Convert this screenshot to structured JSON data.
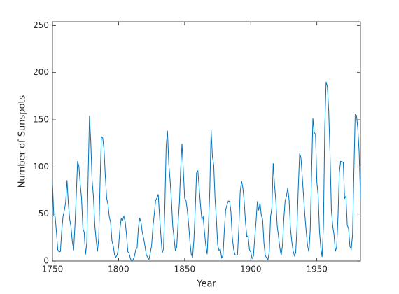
{
  "chart_data": {
    "type": "line",
    "xlabel": "Year",
    "ylabel": "Number of Sunspots",
    "xlim": [
      1750,
      1983
    ],
    "ylim": [
      0,
      254
    ],
    "xticks": [
      1750,
      1800,
      1850,
      1900,
      1950
    ],
    "yticks": [
      0,
      50,
      100,
      150,
      200,
      250
    ],
    "grid": false,
    "series": [
      {
        "name": "Sunspots",
        "color": "#0072bd",
        "x": [
          1750,
          1751,
          1752,
          1753,
          1754,
          1755,
          1756,
          1757,
          1758,
          1759,
          1760,
          1761,
          1762,
          1763,
          1764,
          1765,
          1766,
          1767,
          1768,
          1769,
          1770,
          1771,
          1772,
          1773,
          1774,
          1775,
          1776,
          1777,
          1778,
          1779,
          1780,
          1781,
          1782,
          1783,
          1784,
          1785,
          1786,
          1787,
          1788,
          1789,
          1790,
          1791,
          1792,
          1793,
          1794,
          1795,
          1796,
          1797,
          1798,
          1799,
          1800,
          1801,
          1802,
          1803,
          1804,
          1805,
          1806,
          1807,
          1808,
          1809,
          1810,
          1811,
          1812,
          1813,
          1814,
          1815,
          1816,
          1817,
          1818,
          1819,
          1820,
          1821,
          1822,
          1823,
          1824,
          1825,
          1826,
          1827,
          1828,
          1829,
          1830,
          1831,
          1832,
          1833,
          1834,
          1835,
          1836,
          1837,
          1838,
          1839,
          1840,
          1841,
          1842,
          1843,
          1844,
          1845,
          1846,
          1847,
          1848,
          1849,
          1850,
          1851,
          1852,
          1853,
          1854,
          1855,
          1856,
          1857,
          1858,
          1859,
          1860,
          1861,
          1862,
          1863,
          1864,
          1865,
          1866,
          1867,
          1868,
          1869,
          1870,
          1871,
          1872,
          1873,
          1874,
          1875,
          1876,
          1877,
          1878,
          1879,
          1880,
          1881,
          1882,
          1883,
          1884,
          1885,
          1886,
          1887,
          1888,
          1889,
          1890,
          1891,
          1892,
          1893,
          1894,
          1895,
          1896,
          1897,
          1898,
          1899,
          1900,
          1901,
          1902,
          1903,
          1904,
          1905,
          1906,
          1907,
          1908,
          1909,
          1910,
          1911,
          1912,
          1913,
          1914,
          1915,
          1916,
          1917,
          1918,
          1919,
          1920,
          1921,
          1922,
          1923,
          1924,
          1925,
          1926,
          1927,
          1928,
          1929,
          1930,
          1931,
          1932,
          1933,
          1934,
          1935,
          1936,
          1937,
          1938,
          1939,
          1940,
          1941,
          1942,
          1943,
          1944,
          1945,
          1946,
          1947,
          1948,
          1949,
          1950,
          1951,
          1952,
          1953,
          1954,
          1955,
          1956,
          1957,
          1958,
          1959,
          1960,
          1961,
          1962,
          1963,
          1964,
          1965,
          1966,
          1967,
          1968,
          1969,
          1970,
          1971,
          1972,
          1973,
          1974,
          1975,
          1976,
          1977,
          1978,
          1979,
          1980,
          1981,
          1982,
          1983
        ],
        "values": [
          83.4,
          47.7,
          47.8,
          30.7,
          12.2,
          9.6,
          10.2,
          32.4,
          47.6,
          54.0,
          62.9,
          85.9,
          61.2,
          45.1,
          36.4,
          20.9,
          11.4,
          37.8,
          69.8,
          106.1,
          100.8,
          81.6,
          66.5,
          34.8,
          30.6,
          7.0,
          19.8,
          92.5,
          154.4,
          125.9,
          84.8,
          68.1,
          38.5,
          22.8,
          10.2,
          24.1,
          82.9,
          132.0,
          130.9,
          118.1,
          89.9,
          66.6,
          60.0,
          46.9,
          41.0,
          21.3,
          16.0,
          6.4,
          4.1,
          6.8,
          14.5,
          34.0,
          45.0,
          43.1,
          47.5,
          42.2,
          28.1,
          10.1,
          8.1,
          2.5,
          0.0,
          1.4,
          5.0,
          12.2,
          13.9,
          35.4,
          45.8,
          41.1,
          30.1,
          23.9,
          15.6,
          6.6,
          4.0,
          1.8,
          8.5,
          16.6,
          36.3,
          49.6,
          64.2,
          67.0,
          70.9,
          47.8,
          27.5,
          8.5,
          13.2,
          56.9,
          121.5,
          138.3,
          103.2,
          85.7,
          64.6,
          36.7,
          24.2,
          10.7,
          15.0,
          40.1,
          61.5,
          98.5,
          124.7,
          96.3,
          66.6,
          64.5,
          54.1,
          39.0,
          20.6,
          6.7,
          4.3,
          22.7,
          54.8,
          93.8,
          95.8,
          77.2,
          59.1,
          44.0,
          47.0,
          30.5,
          16.3,
          7.3,
          37.6,
          74.0,
          139.0,
          111.2,
          101.6,
          66.2,
          44.7,
          17.0,
          11.3,
          12.4,
          3.4,
          6.0,
          32.3,
          54.3,
          59.7,
          63.7,
          63.5,
          52.2,
          25.4,
          13.1,
          6.8,
          6.3,
          7.1,
          35.6,
          73.0,
          85.1,
          78.0,
          64.0,
          41.8,
          26.2,
          26.7,
          12.1,
          9.5,
          2.7,
          5.0,
          24.4,
          42.0,
          63.5,
          53.8,
          62.0,
          48.5,
          43.9,
          18.6,
          5.7,
          3.6,
          1.4,
          9.6,
          47.4,
          57.1,
          103.9,
          80.6,
          63.6,
          37.6,
          26.1,
          14.2,
          5.8,
          16.7,
          44.3,
          63.9,
          69.0,
          77.8,
          64.9,
          35.7,
          21.2,
          11.1,
          5.7,
          8.7,
          36.1,
          79.7,
          114.4,
          109.6,
          88.8,
          67.8,
          47.5,
          30.6,
          16.3,
          9.6,
          33.2,
          92.6,
          151.6,
          136.3,
          134.7,
          83.9,
          69.4,
          31.5,
          13.9,
          4.4,
          38.0,
          141.7,
          190.2,
          184.8,
          159.0,
          112.3,
          53.9,
          37.5,
          27.9,
          10.2,
          15.1,
          47.0,
          93.8,
          105.9,
          105.5,
          104.5,
          66.6,
          68.9,
          38.0,
          34.5,
          15.5,
          12.6,
          27.5,
          92.5,
          155.4,
          154.6,
          140.5,
          115.9,
          66.6
        ]
      }
    ]
  }
}
